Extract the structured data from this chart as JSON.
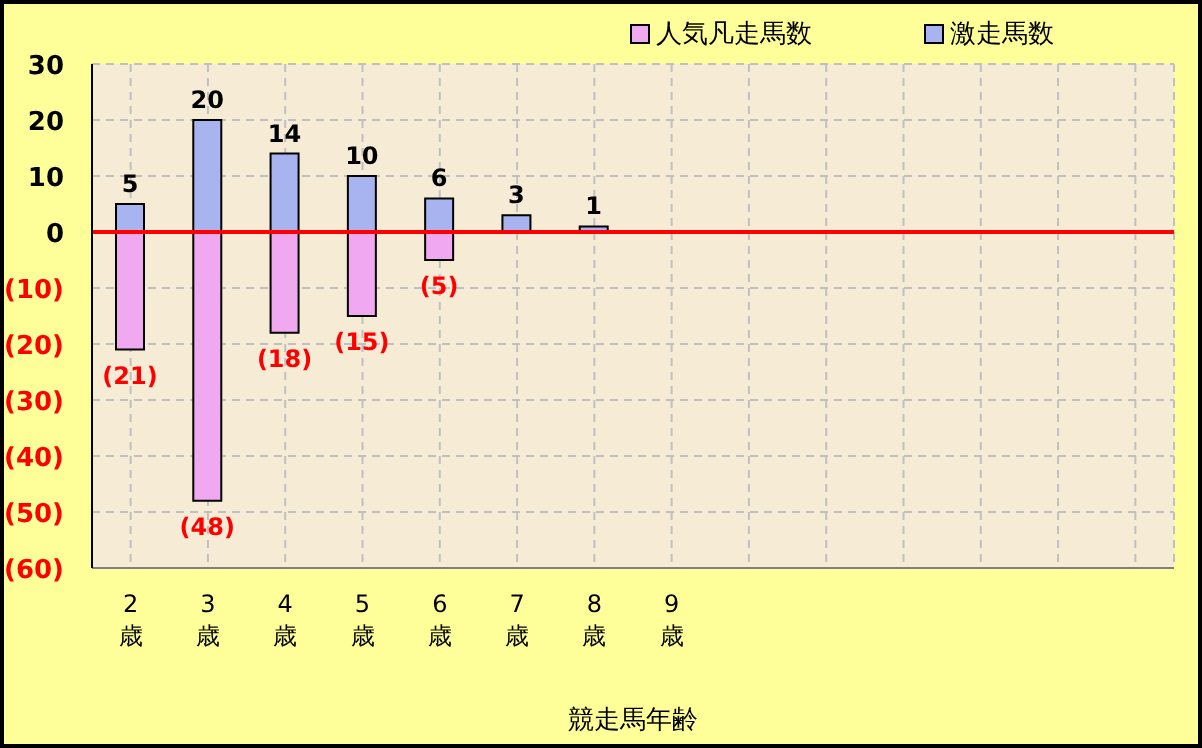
{
  "chart_data": {
    "type": "bar",
    "stacked": true,
    "xlabel": "競走馬年齢",
    "categories": [
      "2歳",
      "3歳",
      "4歳",
      "5歳",
      "6歳",
      "7歳",
      "8歳",
      "9歳",
      null,
      null,
      null,
      null,
      null,
      null
    ],
    "series": [
      {
        "name": "人気凡走馬数",
        "color": "#f0a8f0",
        "values": [
          -21,
          -48,
          -18,
          -15,
          -5,
          null,
          null,
          null,
          null,
          null,
          null,
          null,
          null,
          null
        ],
        "value_labels": [
          "(21)",
          "(48)",
          "(18)",
          "(15)",
          "(5)",
          null,
          null,
          null,
          null,
          null,
          null,
          null,
          null,
          null
        ]
      },
      {
        "name": "激走馬数",
        "color": "#a8b4f0",
        "values": [
          5,
          20,
          14,
          10,
          6,
          3,
          1,
          null,
          null,
          null,
          null,
          null,
          null,
          null
        ],
        "value_labels": [
          "5",
          "20",
          "14",
          "10",
          "6",
          "3",
          "1",
          null,
          null,
          null,
          null,
          null,
          null,
          null
        ]
      }
    ],
    "ylim": [
      -60,
      30
    ],
    "yticks": [
      30,
      20,
      10,
      0,
      {
        "value": -10,
        "label": "(10)"
      },
      {
        "value": -20,
        "label": "(20)"
      },
      {
        "value": -30,
        "label": "(30)"
      },
      {
        "value": -40,
        "label": "(40)"
      },
      {
        "value": -50,
        "label": "(50)"
      },
      {
        "value": -60,
        "label": "(60)"
      }
    ],
    "ref_lines": [
      {
        "axis": "y",
        "value": 0,
        "color": "#ff0000"
      }
    ],
    "grid": true,
    "legend": "top right"
  }
}
